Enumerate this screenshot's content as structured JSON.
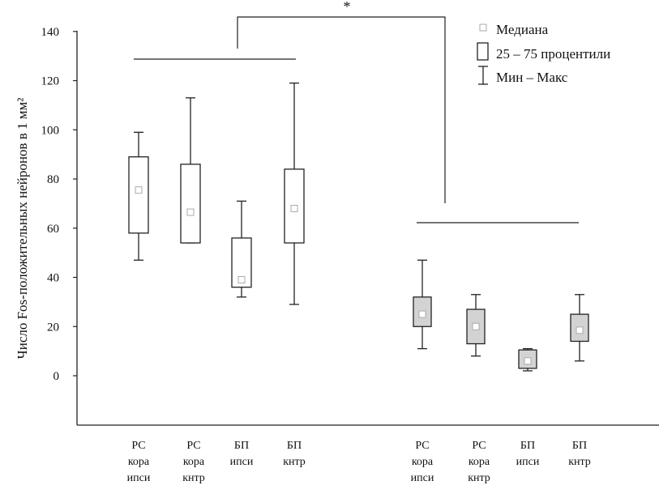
{
  "chart_data": {
    "type": "boxplot",
    "ylabel": "Число Fos-положительных нейронов в 1 мм²",
    "ylim": [
      -20,
      140
    ],
    "yticks": [
      0,
      20,
      40,
      60,
      80,
      100,
      120,
      140
    ],
    "grid": false,
    "legend_position": "top-right",
    "legend": {
      "median": "Медиана",
      "box": "25 – 75 процентили",
      "whisker": "Мин – Макс"
    },
    "significance_mark": "*",
    "groups": [
      {
        "fill": "#ffffff",
        "boxes": [
          {
            "label": [
              "РС",
              "кора",
              "ипси"
            ],
            "min": 47,
            "q1": 58,
            "median": 75.5,
            "q3": 89,
            "max": 99
          },
          {
            "label": [
              "РС",
              "кора",
              "кнтр"
            ],
            "min": 54,
            "q1": 54,
            "median": 66.5,
            "q3": 86,
            "max": 113
          },
          {
            "label": [
              "БП",
              "ипси"
            ],
            "min": 32,
            "q1": 36,
            "median": 39,
            "q3": 56,
            "max": 71
          },
          {
            "label": [
              "БП",
              "кнтр"
            ],
            "min": 29,
            "q1": 54,
            "median": 68,
            "q3": 84,
            "max": 119
          }
        ]
      },
      {
        "fill": "#d3d3d3",
        "boxes": [
          {
            "label": [
              "РС",
              "кора",
              "ипси"
            ],
            "min": 11,
            "q1": 20,
            "median": 25,
            "q3": 32,
            "max": 47
          },
          {
            "label": [
              "РС",
              "кора",
              "кнтр"
            ],
            "min": 8,
            "q1": 13,
            "median": 20,
            "q3": 27,
            "max": 33
          },
          {
            "label": [
              "БП",
              "ипси"
            ],
            "min": 2,
            "q1": 3,
            "median": 6,
            "q3": 10.5,
            "max": 11
          },
          {
            "label": [
              "БП",
              "кнтр"
            ],
            "min": 6,
            "q1": 14,
            "median": 18.5,
            "q3": 25,
            "max": 33
          }
        ]
      }
    ]
  }
}
